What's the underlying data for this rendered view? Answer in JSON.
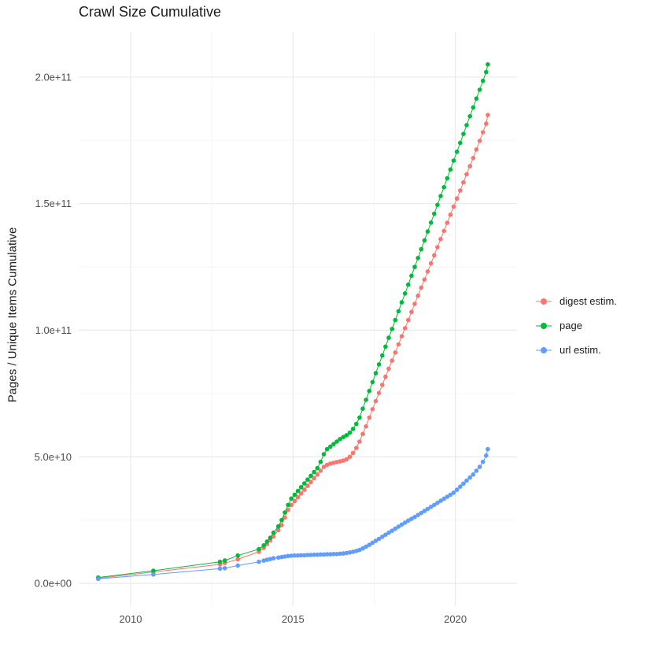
{
  "chart_data": {
    "type": "scatter",
    "title": "Crawl Size Cumulative",
    "xlabel": "",
    "ylabel": "Pages / Unique Items Cumulative",
    "values_unit": "1e9",
    "grid": true,
    "legend_position": "right",
    "xlim": [
      2008.4,
      2021.9
    ],
    "ylim": [
      -9,
      218
    ],
    "x_ticks": [
      {
        "value": 2010,
        "label": "2010"
      },
      {
        "value": 2015,
        "label": "2015"
      },
      {
        "value": 2020,
        "label": "2020"
      }
    ],
    "y_ticks": [
      {
        "value": 0,
        "label": "0.0e+00"
      },
      {
        "value": 50,
        "label": "5.0e+10"
      },
      {
        "value": 100,
        "label": "1.0e+11"
      },
      {
        "value": 150,
        "label": "1.5e+11"
      },
      {
        "value": 200,
        "label": "2.0e+11"
      }
    ],
    "x_minor_ticks": [
      2012.5,
      2017.5
    ],
    "y_minor_ticks": [
      25,
      75,
      125,
      175
    ],
    "x": [
      2009.0,
      2010.7,
      2012.75,
      2012.9,
      2013.3,
      2013.95,
      2014.1,
      2014.2,
      2014.3,
      2014.4,
      2014.55,
      2014.65,
      2014.75,
      2014.85,
      2014.95,
      2015.05,
      2015.15,
      2015.25,
      2015.35,
      2015.45,
      2015.55,
      2015.65,
      2015.75,
      2015.85,
      2015.95,
      2016.05,
      2016.15,
      2016.25,
      2016.35,
      2016.45,
      2016.55,
      2016.65,
      2016.75,
      2016.85,
      2016.95,
      2017.05,
      2017.15,
      2017.25,
      2017.35,
      2017.45,
      2017.55,
      2017.65,
      2017.75,
      2017.85,
      2017.95,
      2018.05,
      2018.15,
      2018.25,
      2018.35,
      2018.45,
      2018.55,
      2018.65,
      2018.75,
      2018.85,
      2018.95,
      2019.05,
      2019.15,
      2019.25,
      2019.35,
      2019.45,
      2019.55,
      2019.65,
      2019.75,
      2019.85,
      2019.95,
      2020.05,
      2020.15,
      2020.25,
      2020.35,
      2020.45,
      2020.55,
      2020.65,
      2020.75,
      2020.85,
      2020.95,
      2021.0
    ],
    "series": [
      {
        "name": "digest estim.",
        "color": "#F8766D",
        "values": [
          2.0,
          4.5,
          7.5,
          8.0,
          9.5,
          12.5,
          14.0,
          15.5,
          17.0,
          18.5,
          21.0,
          23.0,
          26.0,
          29.0,
          31.0,
          32.5,
          34.0,
          35.5,
          37.0,
          38.5,
          40.0,
          41.5,
          43.0,
          44.5,
          46.0,
          46.8,
          47.3,
          47.6,
          47.9,
          48.2,
          48.5,
          49.0,
          50.0,
          51.5,
          53.5,
          56.0,
          59.0,
          62.0,
          65.5,
          68.8,
          72.0,
          75.2,
          78.4,
          81.6,
          84.8,
          88.0,
          91.2,
          94.4,
          97.6,
          100.8,
          104.0,
          107.2,
          110.4,
          113.6,
          116.8,
          120.0,
          123.2,
          126.4,
          129.6,
          132.8,
          136.0,
          139.2,
          142.4,
          145.6,
          148.8,
          152.0,
          155.2,
          158.4,
          161.6,
          164.8,
          168.0,
          171.4,
          174.8,
          178.2,
          181.6,
          185.0
        ]
      },
      {
        "name": "page",
        "color": "#00BA38",
        "values": [
          2.3,
          5.0,
          8.5,
          9.0,
          11.0,
          13.5,
          15.0,
          16.5,
          18.0,
          20.0,
          22.5,
          25.0,
          28.0,
          31.0,
          33.5,
          35.0,
          36.5,
          38.0,
          39.5,
          41.0,
          42.5,
          44.0,
          45.5,
          48.0,
          51.0,
          53.0,
          54.0,
          55.0,
          56.0,
          57.0,
          57.8,
          58.5,
          59.5,
          61.0,
          63.0,
          65.5,
          69.0,
          72.5,
          76.0,
          79.5,
          83.0,
          86.5,
          90.0,
          93.5,
          97.0,
          100.5,
          104.0,
          107.5,
          111.0,
          114.5,
          118.0,
          121.5,
          125.0,
          128.5,
          132.0,
          135.5,
          139.0,
          142.5,
          146.0,
          149.5,
          153.0,
          156.5,
          160.0,
          163.5,
          167.0,
          170.5,
          174.0,
          177.5,
          181.0,
          184.5,
          188.0,
          191.5,
          195.0,
          198.5,
          202.0,
          205.0
        ]
      },
      {
        "name": "url estim.",
        "color": "#619CFF",
        "values": [
          1.8,
          3.5,
          5.8,
          6.0,
          7.0,
          8.5,
          9.0,
          9.3,
          9.6,
          9.9,
          10.2,
          10.4,
          10.6,
          10.8,
          10.9,
          11.0,
          11.0,
          11.1,
          11.1,
          11.2,
          11.2,
          11.3,
          11.3,
          11.4,
          11.4,
          11.5,
          11.5,
          11.6,
          11.6,
          11.7,
          11.8,
          12.0,
          12.2,
          12.5,
          12.8,
          13.2,
          13.8,
          14.5,
          15.2,
          16.0,
          16.8,
          17.6,
          18.4,
          19.2,
          20.0,
          20.8,
          21.6,
          22.4,
          23.2,
          24.0,
          24.8,
          25.5,
          26.2,
          27.0,
          27.8,
          28.6,
          29.4,
          30.2,
          31.0,
          31.8,
          32.6,
          33.4,
          34.2,
          35.0,
          35.8,
          37.0,
          38.2,
          39.4,
          40.6,
          41.8,
          43.0,
          44.5,
          46.0,
          48.0,
          50.5,
          53.0
        ]
      }
    ]
  }
}
